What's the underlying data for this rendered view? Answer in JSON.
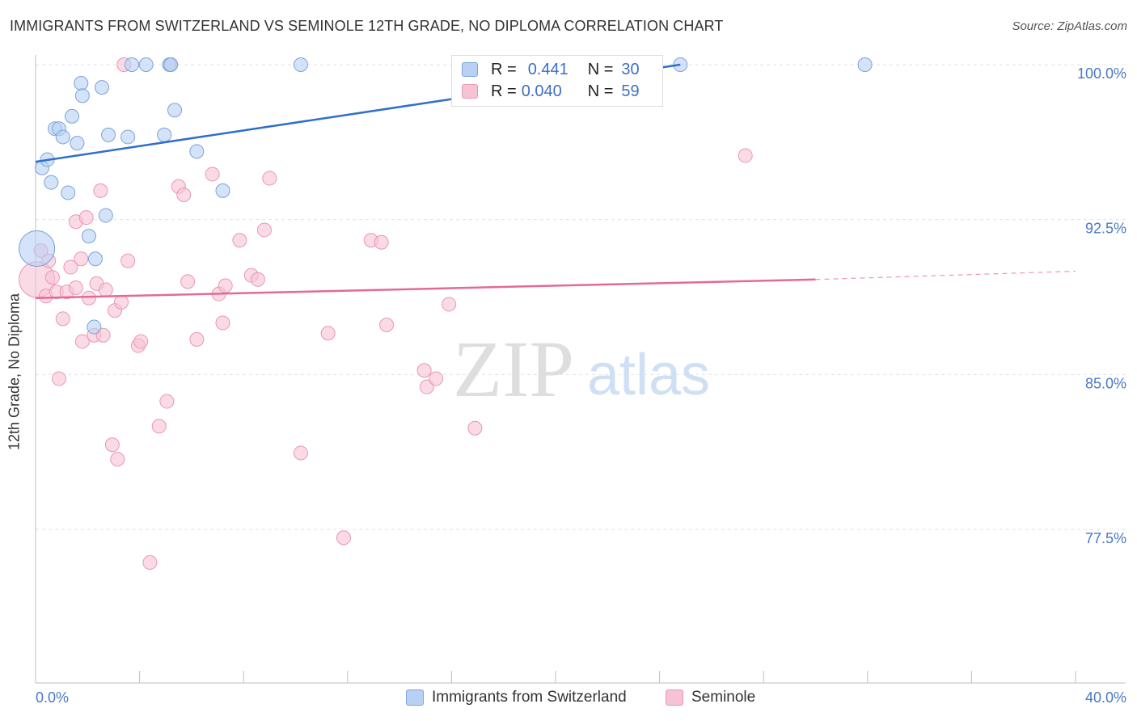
{
  "header": {
    "title": "IMMIGRANTS FROM SWITZERLAND VS SEMINOLE 12TH GRADE, NO DIPLOMA CORRELATION CHART",
    "source": "Source: ZipAtlas.com"
  },
  "watermark": {
    "zip": "ZIP",
    "atlas": "atlas"
  },
  "legend": {
    "r_label": "R =",
    "n_label": "N =",
    "series": [
      {
        "r": "0.441",
        "n": "30"
      },
      {
        "r": "0.040",
        "n": "59"
      }
    ]
  },
  "colors": {
    "blue_fill": "#b8d0f3",
    "blue_stroke": "#7ba3dd",
    "blue_line": "#2f6fcb",
    "pink_fill": "#f6c3d4",
    "pink_stroke": "#e996b4",
    "pink_line": "#e46a95",
    "axis_text": "#4a78c8",
    "grid": "#e3e3e3"
  },
  "chart_data": {
    "type": "scatter",
    "title": "IMMIGRANTS FROM SWITZERLAND VS SEMINOLE 12TH GRADE, NO DIPLOMA CORRELATION CHART",
    "xlabel": "",
    "ylabel": "12th Grade, No Diploma",
    "xlim": [
      0,
      40
    ],
    "ylim": [
      70.5,
      101
    ],
    "x_tick_labels": [
      "0.0%",
      "40.0%"
    ],
    "y_ticks": [
      100,
      92.5,
      85,
      77.5
    ],
    "y_tick_labels": [
      "100.0%",
      "92.5%",
      "85.0%",
      "77.5%"
    ],
    "grid": true,
    "legend_position": "top-center",
    "series": [
      {
        "name": "Immigrants from Switzerland",
        "color": "#7ba3dd",
        "trend": {
          "x": [
            0,
            24.8
          ],
          "y": [
            95.3,
            100
          ]
        },
        "points": [
          {
            "x": 0.05,
            "y": 91.1,
            "big": true
          },
          {
            "x": 0.25,
            "y": 95.0
          },
          {
            "x": 0.45,
            "y": 95.4
          },
          {
            "x": 0.6,
            "y": 94.3
          },
          {
            "x": 0.75,
            "y": 96.9
          },
          {
            "x": 0.9,
            "y": 96.9
          },
          {
            "x": 1.05,
            "y": 96.5
          },
          {
            "x": 1.25,
            "y": 93.8
          },
          {
            "x": 1.4,
            "y": 97.5
          },
          {
            "x": 1.6,
            "y": 96.2
          },
          {
            "x": 1.75,
            "y": 99.1
          },
          {
            "x": 1.8,
            "y": 98.5
          },
          {
            "x": 2.05,
            "y": 91.7
          },
          {
            "x": 2.3,
            "y": 90.6
          },
          {
            "x": 2.55,
            "y": 98.9
          },
          {
            "x": 2.7,
            "y": 92.7
          },
          {
            "x": 2.8,
            "y": 96.6
          },
          {
            "x": 3.55,
            "y": 96.5
          },
          {
            "x": 3.7,
            "y": 100
          },
          {
            "x": 4.25,
            "y": 100
          },
          {
            "x": 4.95,
            "y": 96.6
          },
          {
            "x": 5.15,
            "y": 100
          },
          {
            "x": 5.2,
            "y": 100
          },
          {
            "x": 5.35,
            "y": 97.8
          },
          {
            "x": 6.2,
            "y": 95.8
          },
          {
            "x": 7.2,
            "y": 93.9
          },
          {
            "x": 10.2,
            "y": 100
          },
          {
            "x": 24.8,
            "y": 100
          },
          {
            "x": 31.9,
            "y": 100
          },
          {
            "x": 2.25,
            "y": 87.3
          }
        ]
      },
      {
        "name": "Seminole",
        "color": "#e996b4",
        "trend": {
          "x": [
            0,
            30.0
          ],
          "y": [
            88.7,
            89.6
          ]
        },
        "trend_dashed": {
          "x": [
            30.0,
            40.0
          ],
          "y": [
            89.6,
            90.0
          ]
        },
        "points": [
          {
            "x": 0.05,
            "y": 89.6,
            "big": true
          },
          {
            "x": 0.2,
            "y": 91.0
          },
          {
            "x": 0.4,
            "y": 88.8
          },
          {
            "x": 0.5,
            "y": 90.5
          },
          {
            "x": 0.65,
            "y": 89.7
          },
          {
            "x": 0.8,
            "y": 89.0
          },
          {
            "x": 0.9,
            "y": 84.8
          },
          {
            "x": 1.05,
            "y": 87.7
          },
          {
            "x": 1.2,
            "y": 89.0
          },
          {
            "x": 1.35,
            "y": 90.2
          },
          {
            "x": 1.55,
            "y": 89.2
          },
          {
            "x": 1.55,
            "y": 92.4
          },
          {
            "x": 1.75,
            "y": 90.6
          },
          {
            "x": 1.8,
            "y": 86.6
          },
          {
            "x": 1.95,
            "y": 92.6
          },
          {
            "x": 2.05,
            "y": 88.7
          },
          {
            "x": 2.25,
            "y": 86.9
          },
          {
            "x": 2.35,
            "y": 89.4
          },
          {
            "x": 2.5,
            "y": 93.9
          },
          {
            "x": 2.6,
            "y": 86.9
          },
          {
            "x": 2.7,
            "y": 89.1
          },
          {
            "x": 2.95,
            "y": 81.6
          },
          {
            "x": 3.05,
            "y": 88.1
          },
          {
            "x": 3.15,
            "y": 80.9
          },
          {
            "x": 3.3,
            "y": 88.5
          },
          {
            "x": 3.4,
            "y": 100
          },
          {
            "x": 3.55,
            "y": 90.5
          },
          {
            "x": 3.95,
            "y": 86.4
          },
          {
            "x": 4.05,
            "y": 86.6
          },
          {
            "x": 4.4,
            "y": 75.9
          },
          {
            "x": 4.75,
            "y": 82.5
          },
          {
            "x": 5.05,
            "y": 83.7
          },
          {
            "x": 5.2,
            "y": 100
          },
          {
            "x": 5.5,
            "y": 94.1
          },
          {
            "x": 5.7,
            "y": 93.7
          },
          {
            "x": 5.85,
            "y": 89.5
          },
          {
            "x": 6.2,
            "y": 86.7
          },
          {
            "x": 6.8,
            "y": 94.7
          },
          {
            "x": 7.05,
            "y": 88.9
          },
          {
            "x": 7.2,
            "y": 87.5
          },
          {
            "x": 7.3,
            "y": 89.3
          },
          {
            "x": 7.85,
            "y": 91.5
          },
          {
            "x": 8.3,
            "y": 89.8
          },
          {
            "x": 8.55,
            "y": 89.6
          },
          {
            "x": 8.8,
            "y": 92.0
          },
          {
            "x": 9.0,
            "y": 94.5
          },
          {
            "x": 10.2,
            "y": 81.2
          },
          {
            "x": 11.25,
            "y": 87.0
          },
          {
            "x": 11.85,
            "y": 77.1
          },
          {
            "x": 12.9,
            "y": 91.5
          },
          {
            "x": 13.3,
            "y": 91.4
          },
          {
            "x": 13.5,
            "y": 87.4
          },
          {
            "x": 14.95,
            "y": 85.2
          },
          {
            "x": 15.05,
            "y": 84.4
          },
          {
            "x": 15.4,
            "y": 84.8
          },
          {
            "x": 15.9,
            "y": 88.4
          },
          {
            "x": 16.9,
            "y": 82.4
          },
          {
            "x": 20.0,
            "y": 100
          },
          {
            "x": 27.3,
            "y": 95.6
          }
        ]
      }
    ]
  },
  "bottom_legend": [
    {
      "label": "Immigrants from Switzerland"
    },
    {
      "label": "Seminole"
    }
  ]
}
